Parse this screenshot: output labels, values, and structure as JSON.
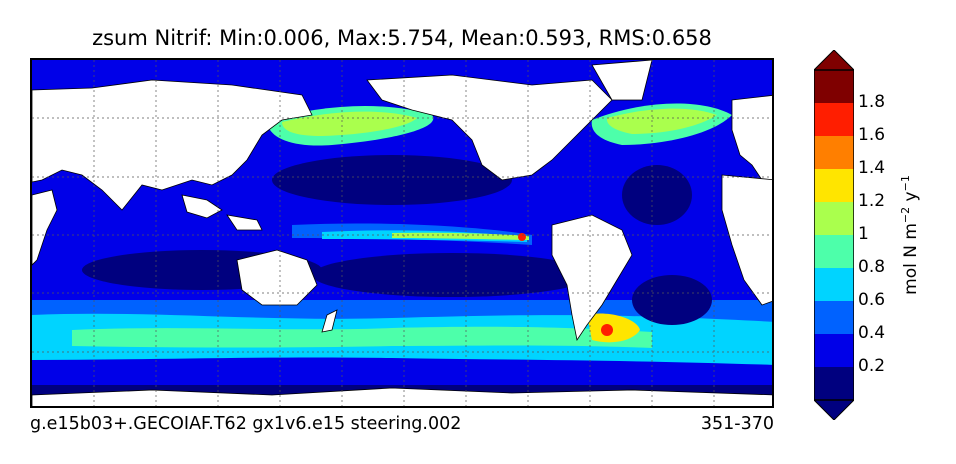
{
  "title": "zsum Nitrif: Min:0.006, Max:5.754, Mean:0.593, RMS:0.658",
  "run_label": "g.e15b03+.GECOIAF.T62 gx1v6.e15 steering.002",
  "period_label": "351-370",
  "colorbar": {
    "unit_main": "mol N m",
    "unit_exp1": "−2",
    "unit_mid": " y",
    "unit_exp2": "−1",
    "tick_labels": [
      "0.2",
      "0.4",
      "0.6",
      "0.8",
      "1",
      "1.2",
      "1.4",
      "1.6",
      "1.8"
    ],
    "levels": [
      0.0,
      0.2,
      0.4,
      0.6,
      0.8,
      1.0,
      1.2,
      1.4,
      1.6,
      1.8,
      2.0
    ],
    "colors": [
      "#00007f",
      "#0000e8",
      "#0062ff",
      "#00d4ff",
      "#4dffaa",
      "#aaff4d",
      "#ffe500",
      "#ff7f00",
      "#ff1e00",
      "#7f0000"
    ],
    "extend": "both",
    "over_color": "#7f0000",
    "under_color": "#00007f"
  },
  "map": {
    "land_color": "#ffffff",
    "grid": true,
    "projection": "global, longitude 30E to 390E"
  }
}
